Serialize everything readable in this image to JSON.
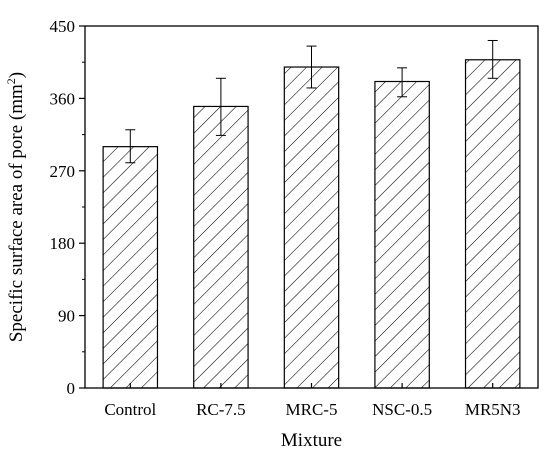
{
  "chart_data": {
    "type": "bar",
    "title": "",
    "xlabel": "Mixture",
    "ylabel": {
      "prefix": "Specific surface area of pore (mm",
      "superscript": "2",
      "suffix": ")"
    },
    "categories": [
      "Control",
      "RC-7.5",
      "MRC-5",
      "NSC-0.5",
      "MR5N3"
    ],
    "values": [
      300,
      350,
      399,
      381,
      408
    ],
    "error_bars": [
      [
        280,
        321
      ],
      [
        314,
        385
      ],
      [
        373,
        425
      ],
      [
        362,
        398
      ],
      [
        385,
        432
      ]
    ],
    "ylim": [
      0,
      450
    ],
    "yticks": [
      0,
      90,
      180,
      270,
      360,
      450
    ],
    "grid": false,
    "legend": "none",
    "bar_fill": "hatched-diagonal",
    "colors": {
      "bar_edge": "#000000",
      "hatch": "#000000",
      "background": "#ffffff"
    }
  }
}
